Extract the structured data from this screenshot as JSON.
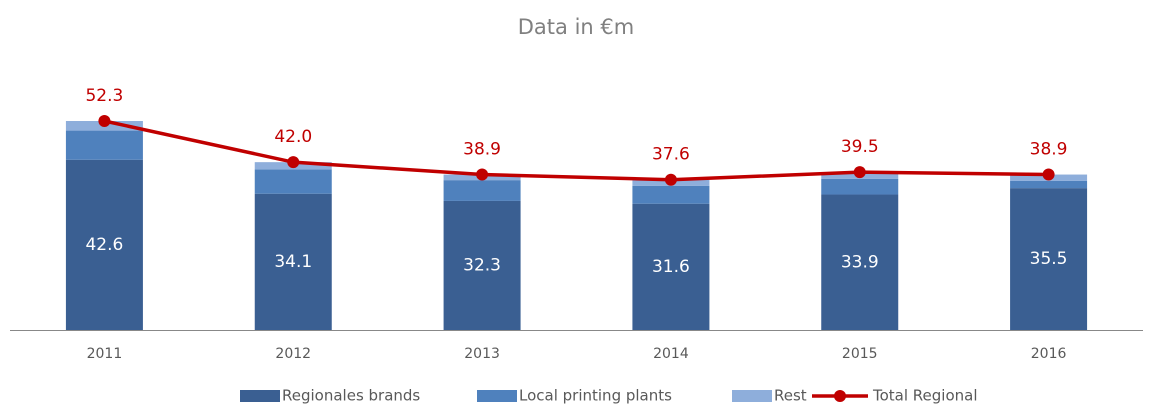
{
  "chart_data": {
    "type": "bar",
    "stacked": true,
    "title": "Data in €m",
    "categories": [
      "2011",
      "2012",
      "2013",
      "2014",
      "2015",
      "2016"
    ],
    "series": [
      {
        "name": "Regionales brands",
        "color": "#3a5f92",
        "values": [
          42.6,
          34.1,
          32.3,
          31.6,
          33.9,
          35.5
        ]
      },
      {
        "name": "Local printing plants",
        "color": "#4f81bd",
        "values": [
          7.3,
          6.1,
          5.2,
          4.5,
          3.9,
          1.8
        ]
      },
      {
        "name": "Rest",
        "color": "#8eaedb",
        "values": [
          2.4,
          1.8,
          1.4,
          1.5,
          1.7,
          1.6
        ]
      },
      {
        "name": "Total Regional",
        "type": "line",
        "color": "#c00000",
        "values": [
          52.3,
          42.0,
          38.9,
          37.6,
          39.5,
          38.9
        ],
        "value_labels": [
          "52.3",
          "42.0",
          "38.9",
          "37.6",
          "39.5",
          "38.9"
        ]
      }
    ],
    "legend": "bottom"
  }
}
